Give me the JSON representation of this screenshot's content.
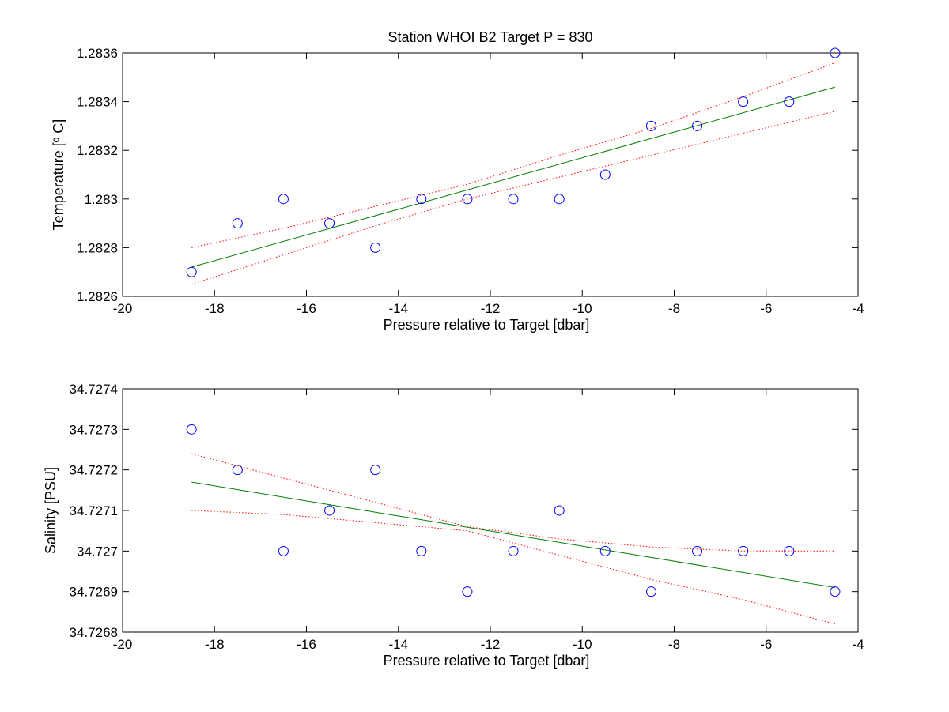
{
  "chart_data": [
    {
      "type": "scatter",
      "title": "Station  WHOI B2 Target P = 830",
      "xlabel": "Pressure relative to Target [dbar]",
      "ylabel": "Temperature [º C]",
      "xlim": [
        -20,
        -4
      ],
      "ylim": [
        1.2826,
        1.2836
      ],
      "xticks": [
        -20,
        -18,
        -16,
        -14,
        -12,
        -10,
        -8,
        -6,
        -4
      ],
      "xtick_labels": [
        "-20",
        "-18",
        "-16",
        "-14",
        "-12",
        "-10",
        "-8",
        "-6",
        "-4"
      ],
      "yticks": [
        1.2826,
        1.2828,
        1.283,
        1.2832,
        1.2834,
        1.2836
      ],
      "ytick_labels": [
        "1.2826",
        "1.2828",
        "1.283",
        "1.2832",
        "1.2834",
        "1.2836"
      ],
      "grid": false,
      "x": [
        -18.5,
        -17.5,
        -16.5,
        -15.5,
        -14.5,
        -13.5,
        -12.5,
        -11.5,
        -10.5,
        -9.5,
        -8.5,
        -7.5,
        -6.5,
        -5.5,
        -4.5
      ],
      "y": [
        1.2827,
        1.2829,
        1.283,
        1.2829,
        1.2828,
        1.283,
        1.283,
        1.283,
        1.283,
        1.2831,
        1.2833,
        1.2833,
        1.2834,
        1.2834,
        1.2836
      ],
      "fit_line": {
        "x": [
          -18.5,
          -4.5
        ],
        "y": [
          1.28272,
          1.28346
        ],
        "color": "#007f00"
      },
      "confidence_bounds": {
        "color": "#ff0000",
        "x": [
          -18.5,
          -16.5,
          -14.5,
          -12.5,
          -10.5,
          -8.5,
          -6.5,
          -4.5
        ],
        "upper": [
          1.2828,
          1.28288,
          1.28297,
          1.28306,
          1.28318,
          1.28329,
          1.28342,
          1.28356
        ],
        "lower": [
          1.28265,
          1.28277,
          1.28289,
          1.283,
          1.28309,
          1.28318,
          1.28327,
          1.28336
        ]
      },
      "marker_color": "#0000ff"
    },
    {
      "type": "scatter",
      "title": "",
      "xlabel": "Pressure relative to Target [dbar]",
      "ylabel": "Salinity [PSU]",
      "xlim": [
        -20,
        -4
      ],
      "ylim": [
        34.7268,
        34.7274
      ],
      "xticks": [
        -20,
        -18,
        -16,
        -14,
        -12,
        -10,
        -8,
        -6,
        -4
      ],
      "xtick_labels": [
        "-20",
        "-18",
        "-16",
        "-14",
        "-12",
        "-10",
        "-8",
        "-6",
        "-4"
      ],
      "yticks": [
        34.7268,
        34.7269,
        34.727,
        34.7271,
        34.7272,
        34.7273,
        34.7274
      ],
      "ytick_labels": [
        "34.7268",
        "34.7269",
        "34.727",
        "34.7271",
        "34.7272",
        "34.7273",
        "34.7274"
      ],
      "grid": false,
      "x": [
        -18.5,
        -17.5,
        -16.5,
        -15.5,
        -14.5,
        -13.5,
        -12.5,
        -11.5,
        -10.5,
        -9.5,
        -8.5,
        -7.5,
        -6.5,
        -5.5,
        -4.5
      ],
      "y": [
        34.7273,
        34.7272,
        34.727,
        34.7271,
        34.7272,
        34.727,
        34.7269,
        34.727,
        34.7271,
        34.727,
        34.7269,
        34.727,
        34.727,
        34.727,
        34.7269
      ],
      "fit_line": {
        "x": [
          -18.5,
          -4.5
        ],
        "y": [
          34.72717,
          34.72691
        ],
        "color": "#007f00"
      },
      "confidence_bounds": {
        "color": "#ff0000",
        "x": [
          -18.5,
          -16.5,
          -14.5,
          -12.5,
          -10.5,
          -8.5,
          -6.5,
          -4.5
        ],
        "upper": [
          34.72724,
          34.72718,
          34.72712,
          34.72706,
          34.72703,
          34.72701,
          34.727,
          34.727
        ],
        "lower": [
          34.7271,
          34.72709,
          34.72707,
          34.72705,
          34.72699,
          34.72693,
          34.72688,
          34.72682
        ]
      },
      "marker_color": "#0000ff"
    }
  ]
}
